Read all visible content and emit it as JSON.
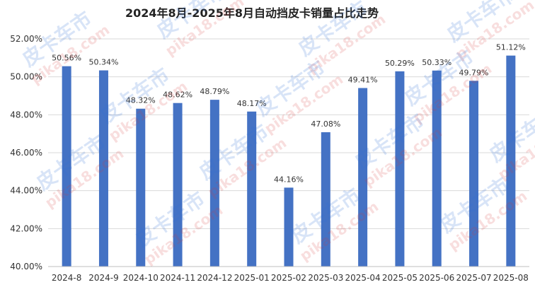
{
  "chart_data": {
    "type": "bar",
    "title": "2024年8月-2025年8月自动挡皮卡销量占比走势",
    "categories": [
      "2024-8",
      "2024-9",
      "2024-10",
      "2024-11",
      "2024-12",
      "2025-01",
      "2025-02",
      "2025-03",
      "2025-04",
      "2025-05",
      "2025-06",
      "2025-07",
      "2025-08"
    ],
    "values": [
      50.56,
      50.34,
      48.32,
      48.62,
      48.79,
      48.17,
      44.16,
      47.08,
      49.41,
      50.29,
      50.33,
      49.79,
      51.12
    ],
    "value_labels": [
      "50.56%",
      "50.34%",
      "48.32%",
      "48.62%",
      "48.79%",
      "48.17%",
      "44.16%",
      "47.08%",
      "49.41%",
      "50.29%",
      "50.33%",
      "49.79%",
      "51.12%"
    ],
    "ylim": [
      40,
      52
    ],
    "yticks": [
      40,
      42,
      44,
      46,
      48,
      50,
      52
    ],
    "ytick_labels": [
      "40.00%",
      "42.00%",
      "44.00%",
      "46.00%",
      "48.00%",
      "50.00%",
      "52.00%"
    ],
    "grid": true,
    "bar_color": "#4472c4"
  },
  "watermark": {
    "cn": "皮卡车市",
    "en": "pika18.com",
    "cn_color": "#2f6fd6",
    "en_color": "#d63a3a"
  }
}
